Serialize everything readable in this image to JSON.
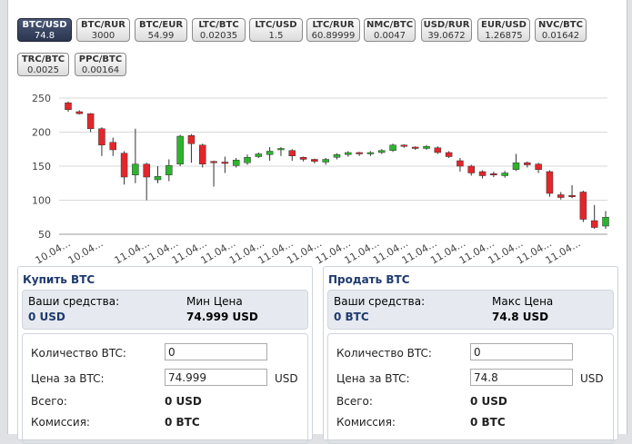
{
  "tabs": [
    {
      "pair": "BTC/USD",
      "price": "74.8"
    },
    {
      "pair": "BTC/RUR",
      "price": "3000"
    },
    {
      "pair": "BTC/EUR",
      "price": "54.99"
    },
    {
      "pair": "LTC/BTC",
      "price": "0.02035"
    },
    {
      "pair": "LTC/USD",
      "price": "1.5"
    },
    {
      "pair": "LTC/RUR",
      "price": "60.89999"
    },
    {
      "pair": "NMC/BTC",
      "price": "0.0047"
    },
    {
      "pair": "USD/RUR",
      "price": "39.0672"
    },
    {
      "pair": "EUR/USD",
      "price": "1.26875"
    },
    {
      "pair": "NVC/BTC",
      "price": "0.01642"
    },
    {
      "pair": "TRC/BTC",
      "price": "0.0025"
    },
    {
      "pair": "PPC/BTC",
      "price": "0.00164"
    }
  ],
  "chart_data": {
    "type": "candlestick",
    "ylim": [
      50,
      250
    ],
    "yticks": [
      50,
      100,
      150,
      200,
      250
    ],
    "grid": true,
    "xticks": [
      "10.04...",
      "10.04...",
      "11.04...",
      "11.04...",
      "11.04...",
      "11.04...",
      "11.04...",
      "11.04...",
      "11.04...",
      "11.04...",
      "11.04...",
      "11.04...",
      "11.04...",
      "11.04...",
      "11.04...",
      "11.04...",
      "11.04...",
      "11.04..."
    ],
    "up_color": "#2cb52c",
    "down_color": "#e3262b",
    "open": [
      243,
      230,
      227,
      205,
      185,
      169,
      137,
      153,
      130,
      137,
      153,
      195,
      181,
      157,
      156,
      151,
      155,
      164,
      167,
      174,
      173,
      163,
      160,
      156,
      163,
      167,
      170,
      168,
      170,
      173,
      181,
      178,
      176,
      177,
      170,
      158,
      150,
      142,
      139,
      136,
      145,
      155,
      153,
      142,
      108,
      107,
      112,
      70,
      62
    ],
    "close": [
      233,
      227,
      205,
      181,
      174,
      134,
      153,
      134,
      135,
      151,
      194,
      183,
      153,
      155,
      154,
      159,
      163,
      168,
      172,
      176,
      165,
      160,
      157,
      160,
      167,
      170,
      168,
      170,
      173,
      181,
      179,
      176,
      179,
      170,
      164,
      150,
      140,
      136,
      137,
      140,
      155,
      152,
      145,
      110,
      104,
      105,
      72,
      60,
      75
    ],
    "high": [
      245,
      232,
      228,
      207,
      192,
      172,
      205,
      155,
      150,
      160,
      196,
      197,
      183,
      158,
      164,
      162,
      167,
      170,
      178,
      178,
      175,
      164,
      161,
      162,
      169,
      172,
      171,
      172,
      175,
      183,
      182,
      179,
      181,
      179,
      172,
      162,
      152,
      144,
      142,
      143,
      168,
      157,
      155,
      144,
      112,
      122,
      114,
      93,
      84
    ],
    "low": [
      230,
      226,
      200,
      165,
      165,
      123,
      125,
      100,
      125,
      128,
      150,
      155,
      148,
      120,
      140,
      148,
      152,
      162,
      158,
      165,
      158,
      157,
      154,
      152,
      160,
      164,
      165,
      165,
      168,
      171,
      177,
      174,
      174,
      168,
      162,
      142,
      136,
      132,
      134,
      133,
      143,
      148,
      140,
      105,
      101,
      103,
      68,
      58,
      58
    ]
  },
  "buy": {
    "title": "Купить BTC",
    "funds_label": "Ваши средства:",
    "funds": "0 USD",
    "price_label": "Мин Цена",
    "price": "74.999 USD",
    "amount_label": "Количество BTC:",
    "amount": "0",
    "unit_price_label": "Цена за BTC:",
    "unit_price": "74.999",
    "currency": "USD",
    "total_label": "Всего:",
    "total": "0 USD",
    "fee_label": "Комиссия:",
    "fee": "0 BTC"
  },
  "sell": {
    "title": "Продать BTC",
    "funds_label": "Ваши средства:",
    "funds": "0 BTC",
    "price_label": "Макс Цена",
    "price": "74.8 USD",
    "amount_label": "Количество BTC:",
    "amount": "0",
    "unit_price_label": "Цена за BTC:",
    "unit_price": "74.8",
    "currency": "USD",
    "total_label": "Всего:",
    "total": "0 USD",
    "fee_label": "Комиссия:",
    "fee": "0 BTC"
  }
}
